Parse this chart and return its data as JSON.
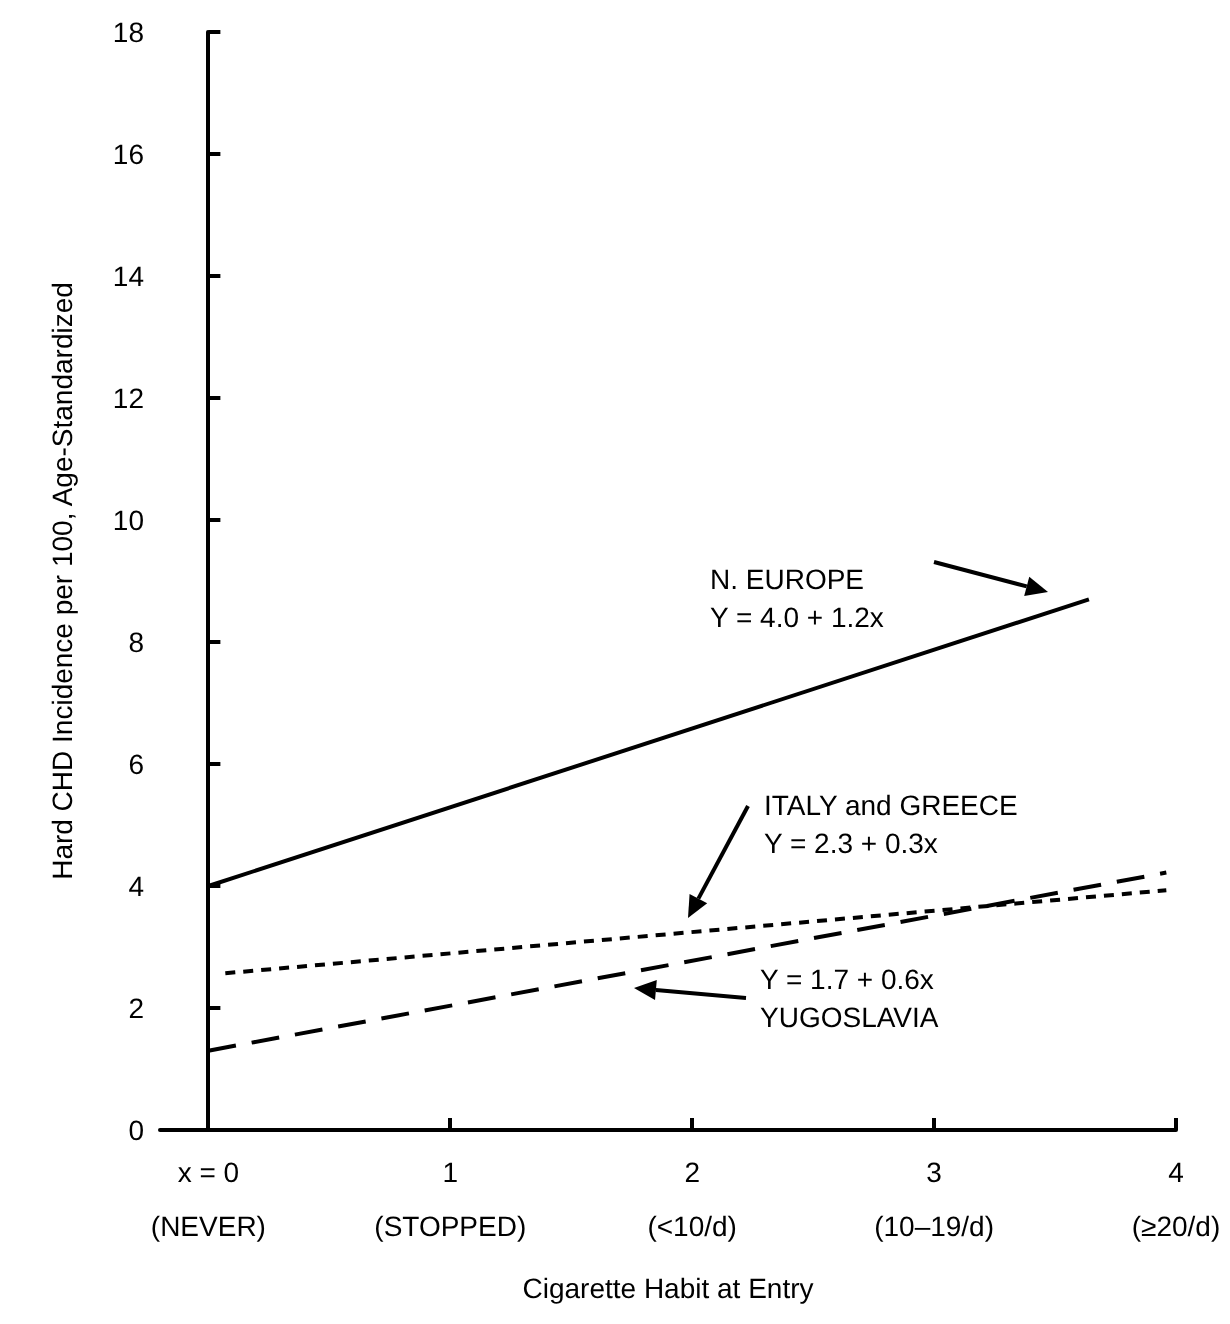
{
  "chart_data": {
    "type": "line",
    "xlabel": "Cigarette Habit at Entry",
    "ylabel": "Hard CHD Incidence per 100, Age-Standardized",
    "xlim": [
      -0.2,
      4
    ],
    "xticks": [
      {
        "value": 0,
        "label": "x = 0\n(NEVER)"
      },
      {
        "value": 1,
        "label": "1\n(STOPPED)"
      },
      {
        "value": 2,
        "label": "2\n(<10/d)"
      },
      {
        "value": 3,
        "label": "3\n(10–19/d)"
      },
      {
        "value": 4,
        "label": "4\n(≥20/d)"
      }
    ],
    "ylim": [
      0,
      18
    ],
    "yticks": [
      0,
      2,
      4,
      6,
      8,
      10,
      12,
      14,
      16,
      18
    ],
    "grid": false,
    "marker": "none",
    "series": [
      {
        "color": "#000000",
        "line_style": "solid",
        "x": [
          0,
          3.64
        ],
        "values": [
          4.0,
          8.7
        ]
      },
      {
        "color": "#000000",
        "line_style": "dotted",
        "x": [
          0.07,
          3.96
        ],
        "values": [
          2.57,
          3.93
        ]
      },
      {
        "color": "#000000",
        "line_style": "dashed",
        "x": [
          0,
          3.96
        ],
        "values": [
          1.3,
          4.22
        ]
      }
    ],
    "annotations": [
      "N. EUROPE\nY = 4.0 + 1.2x",
      "ITALY and GREECE\nY = 2.3 + 0.3x",
      "Y = 1.7 + 0.6x\nYUGOSLAVIA"
    ]
  }
}
